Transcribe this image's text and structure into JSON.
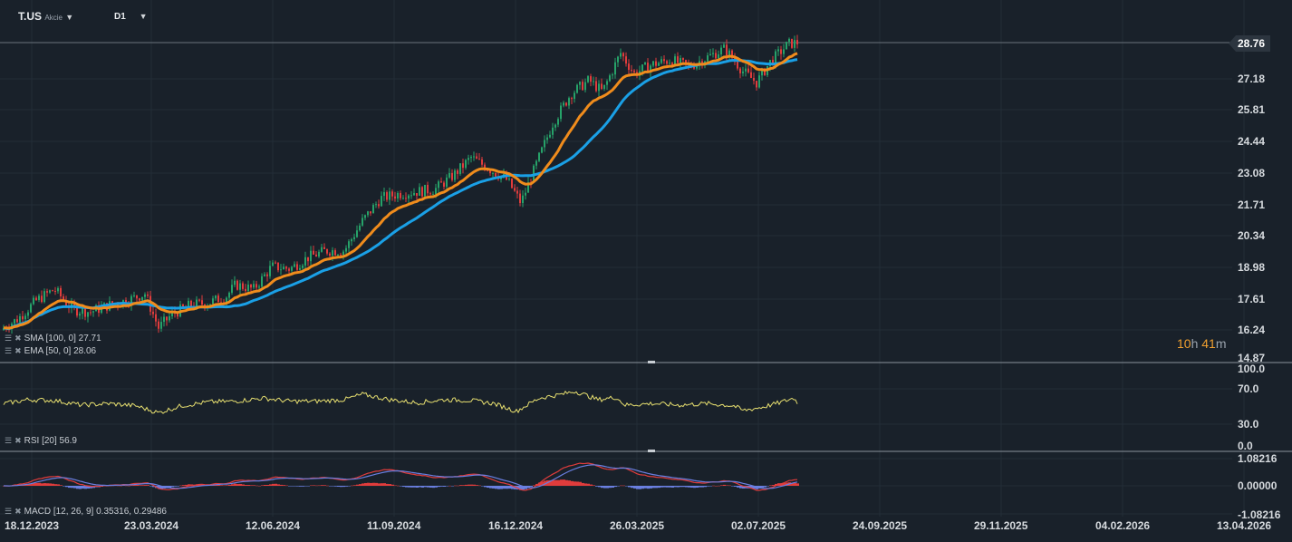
{
  "header": {
    "symbol": "T.US",
    "instrument_type": "Akcie",
    "interval": "D1",
    "symbol_caret_icon": "caret-down-icon",
    "interval_caret_icon": "caret-down-icon"
  },
  "colors": {
    "background": "#19212a",
    "grid": "#232d37",
    "up": "#26a269",
    "down": "#e03c3c",
    "sma": "#1aa0e6",
    "ema": "#f08c1c",
    "rsi": "#e8e070",
    "macd_line": "#e03c3c",
    "signal_line": "#6a7fe0",
    "hist_pos": "#e03c3c",
    "hist_neg": "#6a7fe0"
  },
  "price_panel": {
    "current_price_tag": "28.76",
    "timer_hours": "10",
    "timer_h_unit": "h",
    "timer_minutes": "41",
    "timer_m_unit": "m",
    "y_ticks": [
      "27.18",
      "25.81",
      "24.44",
      "23.08",
      "21.71",
      "20.34",
      "18.98",
      "17.61",
      "16.24",
      "14.87"
    ],
    "indicators": [
      {
        "label": "SMA [100, 0] 27.71",
        "icon": "settings-list-icon",
        "close_icon": "close-icon"
      },
      {
        "label": "EMA [50, 0] 28.06",
        "icon": "settings-list-icon",
        "close_icon": "close-icon"
      }
    ]
  },
  "rsi_panel": {
    "label": "RSI [20] 56.9",
    "icon": "settings-list-icon",
    "close_icon": "close-icon",
    "y_ticks": [
      "100.0",
      "70.0",
      "30.0",
      "0.0"
    ]
  },
  "macd_panel": {
    "label": "MACD [12, 26, 9] 0.35316, 0.29486",
    "icon": "settings-list-icon",
    "close_icon": "close-icon",
    "y_ticks": [
      "1.08216",
      "0.00000",
      "-1.08216"
    ]
  },
  "x_axis": {
    "labels": [
      "18.12.2023",
      "23.03.2024",
      "12.06.2024",
      "11.09.2024",
      "16.12.2024",
      "26.03.2025",
      "02.07.2025",
      "24.09.2025",
      "29.11.2025",
      "04.02.2026",
      "13.04.2026"
    ]
  },
  "chart_data": {
    "type": "candlestick",
    "symbol": "T.US",
    "interval": "D1",
    "price_range": [
      14.87,
      29.0
    ],
    "current_price": 28.76,
    "sma_100_last": 27.71,
    "ema_50_last": 28.06,
    "rsi_20_last": 56.9,
    "macd_last": [
      0.35316,
      0.29486
    ],
    "price_path": [
      [
        0,
        16.1
      ],
      [
        20,
        16.6
      ],
      [
        40,
        17.4
      ],
      [
        60,
        17.9
      ],
      [
        80,
        17.0
      ],
      [
        100,
        16.9
      ],
      [
        120,
        17.2
      ],
      [
        140,
        17.4
      ],
      [
        160,
        17.7
      ],
      [
        175,
        16.2
      ],
      [
        190,
        16.8
      ],
      [
        210,
        17.2
      ],
      [
        230,
        17.3
      ],
      [
        250,
        17.6
      ],
      [
        260,
        18.1
      ],
      [
        280,
        17.9
      ],
      [
        300,
        18.9
      ],
      [
        320,
        18.8
      ],
      [
        340,
        19.3
      ],
      [
        360,
        19.6
      ],
      [
        380,
        19.6
      ],
      [
        400,
        20.9
      ],
      [
        420,
        21.9
      ],
      [
        440,
        22.1
      ],
      [
        460,
        22.2
      ],
      [
        480,
        22.3
      ],
      [
        500,
        22.9
      ],
      [
        520,
        23.7
      ],
      [
        540,
        23.2
      ],
      [
        560,
        22.7
      ],
      [
        575,
        21.7
      ],
      [
        590,
        23.2
      ],
      [
        610,
        25.2
      ],
      [
        630,
        26.5
      ],
      [
        650,
        27.1
      ],
      [
        665,
        26.6
      ],
      [
        685,
        28.3
      ],
      [
        700,
        27.4
      ],
      [
        720,
        27.8
      ],
      [
        740,
        28.0
      ],
      [
        760,
        27.7
      ],
      [
        780,
        28.1
      ],
      [
        800,
        28.5
      ],
      [
        820,
        27.5
      ],
      [
        835,
        27.0
      ],
      [
        850,
        27.9
      ],
      [
        870,
        28.7
      ],
      [
        880,
        28.76
      ]
    ],
    "rsi_path": [
      [
        0,
        54
      ],
      [
        30,
        60
      ],
      [
        60,
        59
      ],
      [
        90,
        53
      ],
      [
        120,
        55
      ],
      [
        150,
        52
      ],
      [
        175,
        43
      ],
      [
        200,
        52
      ],
      [
        230,
        57
      ],
      [
        260,
        58
      ],
      [
        290,
        62
      ],
      [
        320,
        58
      ],
      [
        350,
        58
      ],
      [
        380,
        60
      ],
      [
        400,
        67
      ],
      [
        430,
        60
      ],
      [
        460,
        56
      ],
      [
        490,
        60
      ],
      [
        520,
        59
      ],
      [
        545,
        55
      ],
      [
        570,
        45
      ],
      [
        595,
        62
      ],
      [
        620,
        67
      ],
      [
        635,
        71
      ],
      [
        660,
        60
      ],
      [
        680,
        63
      ],
      [
        690,
        53
      ],
      [
        720,
        55
      ],
      [
        750,
        53
      ],
      [
        780,
        55
      ],
      [
        810,
        52
      ],
      [
        820,
        46
      ],
      [
        840,
        50
      ],
      [
        860,
        56
      ],
      [
        876,
        62
      ],
      [
        880,
        56.9
      ]
    ]
  }
}
